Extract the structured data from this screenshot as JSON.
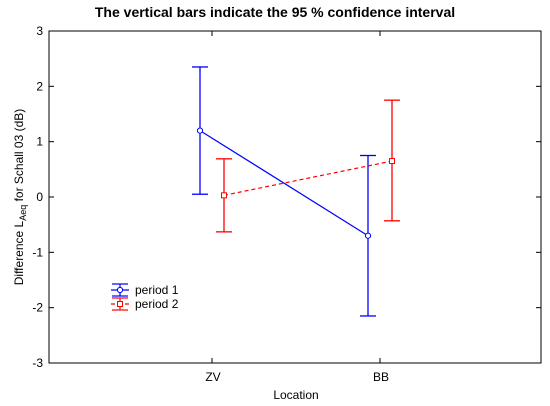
{
  "chart_data": {
    "type": "line",
    "title": "The vertical bars indicate the 95 % confidence interval",
    "xlabel": "Location",
    "ylabel": {
      "prefix": "Difference L",
      "subscript": "Aeq",
      "suffix": " for Schall 03 (dB)"
    },
    "categories": [
      "ZV",
      "BB"
    ],
    "ylim": [
      -3,
      3
    ],
    "yticks": [
      -3,
      -2,
      -1,
      0,
      1,
      2,
      3
    ],
    "ytick_labels": [
      "-3",
      "-2",
      "-1",
      "0",
      "1",
      "2",
      "3"
    ],
    "grid": false,
    "legend_position": "lower-left",
    "series": [
      {
        "name": "period 1",
        "color": "#0000ff",
        "line_style": "solid",
        "marker": "circle",
        "values": [
          1.2,
          -0.7
        ],
        "ci_lower": [
          0.05,
          -2.15
        ],
        "ci_upper": [
          2.35,
          0.75
        ]
      },
      {
        "name": "period 2",
        "color": "#ff0000",
        "line_style": "dashed",
        "marker": "square",
        "values": [
          0.03,
          0.65
        ],
        "ci_lower": [
          -0.63,
          -0.43
        ],
        "ci_upper": [
          0.69,
          1.75
        ]
      }
    ]
  }
}
